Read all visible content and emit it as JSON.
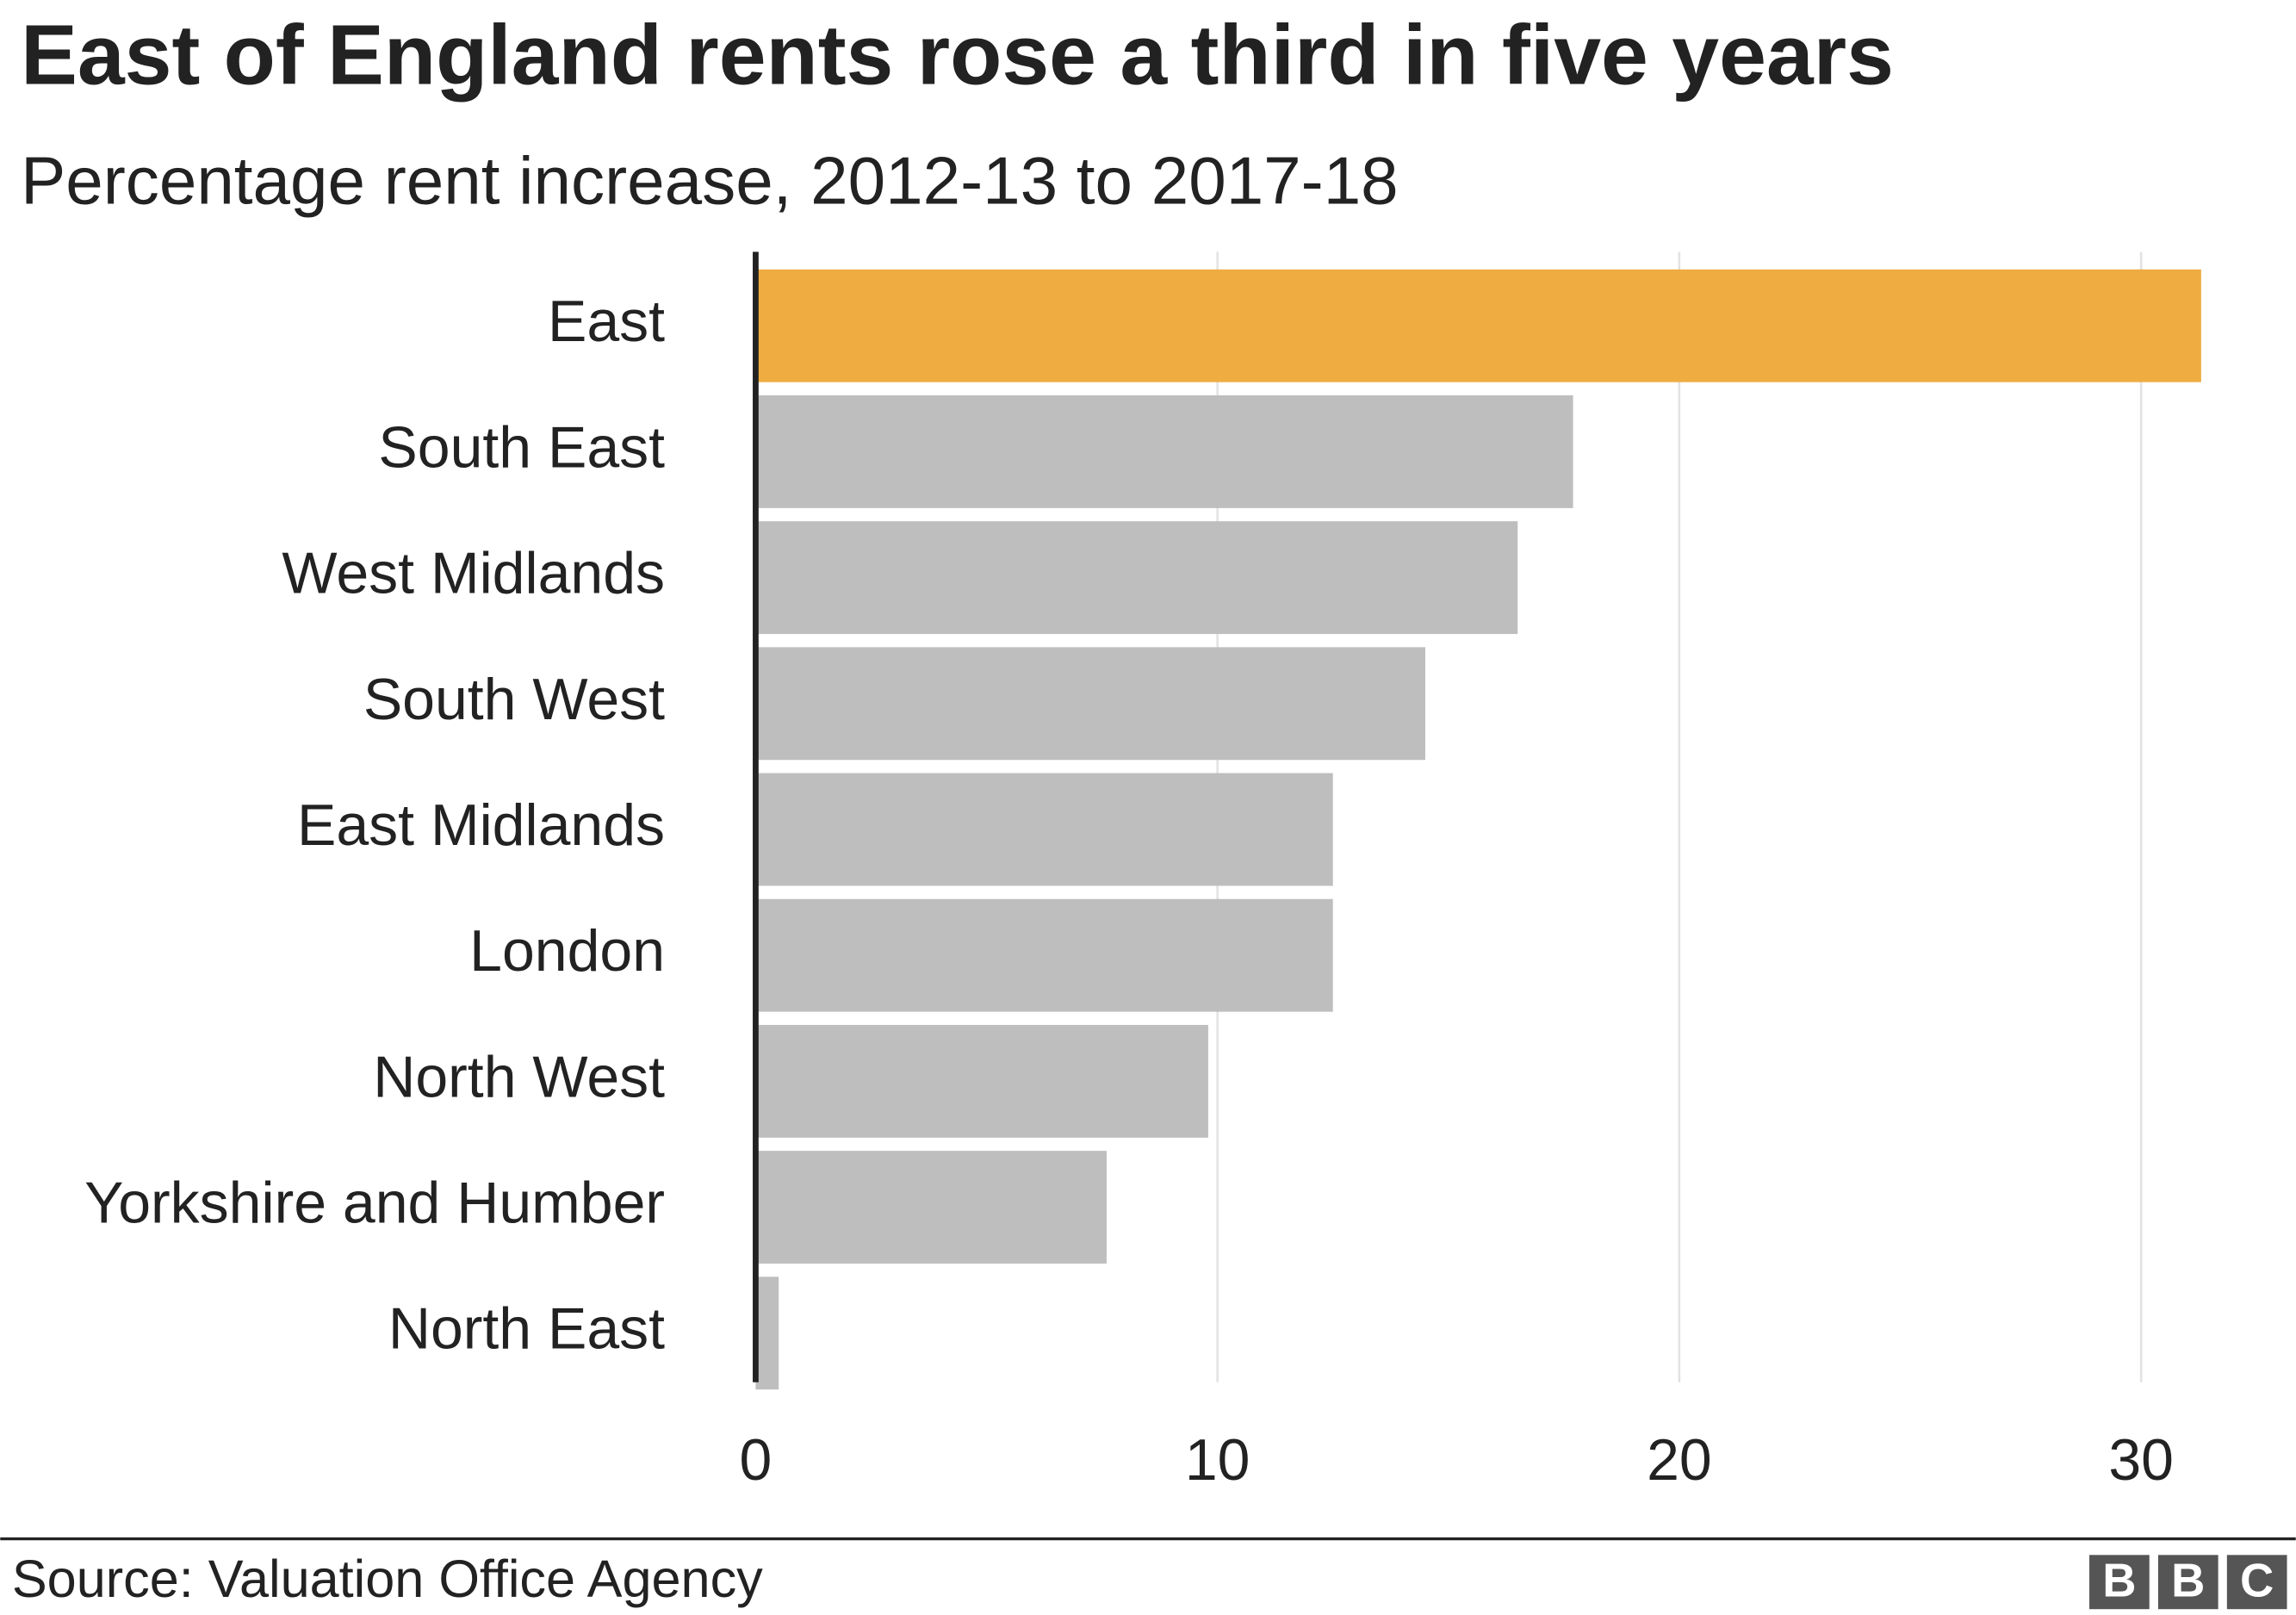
{
  "chart_data": {
    "type": "bar",
    "orientation": "horizontal",
    "title": "East of England rents rose a third in five years",
    "subtitle": "Percentage rent increase, 2012-13 to 2017-18",
    "categories": [
      "East",
      "South East",
      "West Midlands",
      "South West",
      "East Midlands",
      "London",
      "North West",
      "Yorkshire and Humber",
      "North East"
    ],
    "values": [
      31.3,
      17.7,
      16.5,
      14.5,
      12.5,
      12.5,
      9.8,
      7.6,
      0.5
    ],
    "colors": [
      "#eeac41",
      "#bebebe",
      "#bebebe",
      "#bebebe",
      "#bebebe",
      "#bebebe",
      "#bebebe",
      "#bebebe",
      "#bebebe"
    ],
    "xlim": [
      0,
      33
    ],
    "xticks": [
      0,
      10,
      20,
      30
    ],
    "grid": true,
    "source": "Source: Valuation Office Agency",
    "logo": [
      "B",
      "B",
      "C"
    ]
  }
}
